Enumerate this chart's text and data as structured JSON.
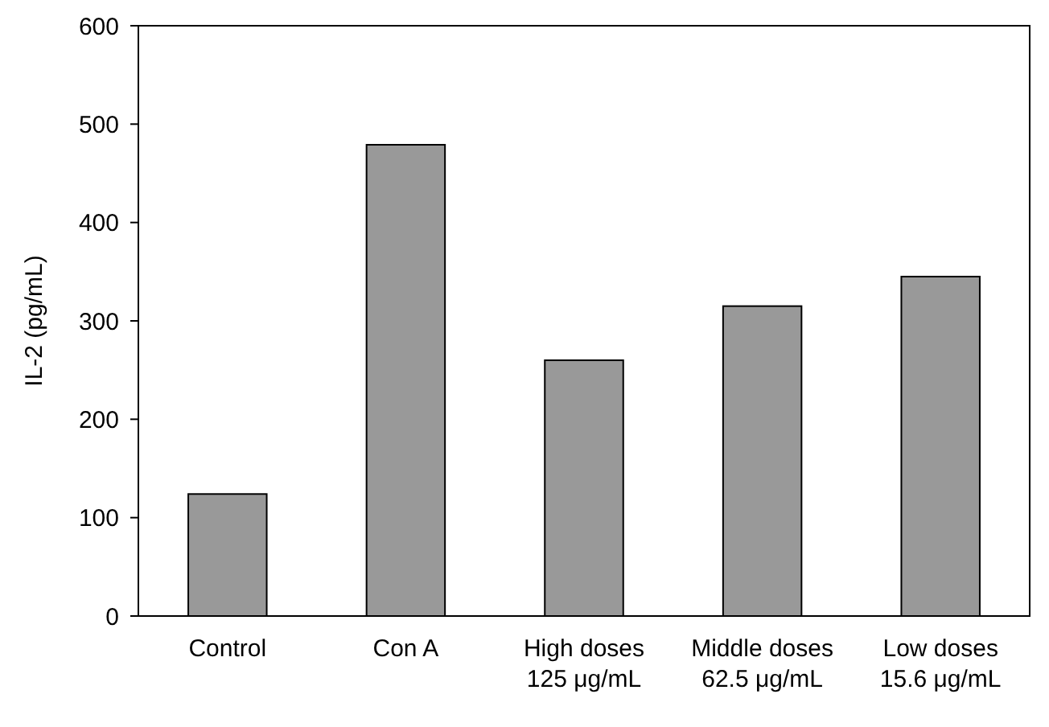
{
  "chart_data": {
    "type": "bar",
    "ylabel": "IL-2 (pg/mL)",
    "categories": [
      "Control",
      "Con A",
      "High doses\n125 μg/mL",
      "Middle doses\n62.5 μg/mL",
      "Low doses\n15.6 μg/mL"
    ],
    "values": [
      124,
      479,
      260,
      315,
      345
    ],
    "color": "#999999",
    "ylim": [
      0,
      600
    ],
    "yticks": [
      0,
      100,
      200,
      300,
      400,
      500,
      600
    ],
    "grid": false
  }
}
